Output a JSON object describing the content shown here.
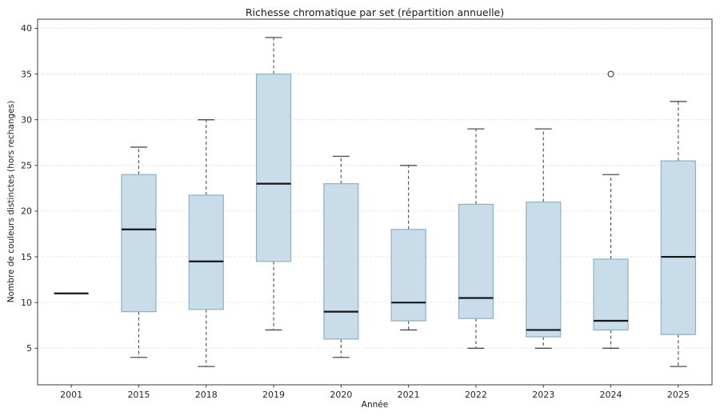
{
  "chart_data": {
    "type": "boxplot",
    "title": "Richesse chromatique par set (répartition annuelle)",
    "xlabel": "Année",
    "ylabel": "Nombre de couleurs distinctes (hors rechanges)",
    "categories": [
      "2001",
      "2015",
      "2018",
      "2019",
      "2020",
      "2021",
      "2022",
      "2023",
      "2024",
      "2025"
    ],
    "yticks": [
      5,
      10,
      15,
      20,
      25,
      30,
      35,
      40
    ],
    "ylim": [
      1,
      41
    ],
    "grid": "horizontal dashed light",
    "legend": "none",
    "boxes": [
      {
        "label": "2001",
        "min": 11,
        "q1": 11,
        "median": 11,
        "q3": 11,
        "max": 11,
        "outliers": []
      },
      {
        "label": "2015",
        "min": 4,
        "q1": 9,
        "median": 18,
        "q3": 24,
        "max": 27,
        "outliers": []
      },
      {
        "label": "2018",
        "min": 3,
        "q1": 9.25,
        "median": 14.5,
        "q3": 21.75,
        "max": 30,
        "outliers": []
      },
      {
        "label": "2019",
        "min": 7,
        "q1": 14.5,
        "median": 23,
        "q3": 35,
        "max": 39,
        "outliers": []
      },
      {
        "label": "2020",
        "min": 4,
        "q1": 6,
        "median": 9,
        "q3": 23,
        "max": 26,
        "outliers": []
      },
      {
        "label": "2021",
        "min": 7,
        "q1": 8,
        "median": 10,
        "q3": 18,
        "max": 25,
        "outliers": []
      },
      {
        "label": "2022",
        "min": 5,
        "q1": 8.25,
        "median": 10.5,
        "q3": 20.75,
        "max": 29,
        "outliers": []
      },
      {
        "label": "2023",
        "min": 5,
        "q1": 6.25,
        "median": 7,
        "q3": 21,
        "max": 29,
        "outliers": []
      },
      {
        "label": "2024",
        "min": 5,
        "q1": 7,
        "median": 8,
        "q3": 14.75,
        "max": 24,
        "outliers": [
          35
        ]
      },
      {
        "label": "2025",
        "min": 3,
        "q1": 6.5,
        "median": 15,
        "q3": 25.5,
        "max": 32,
        "outliers": []
      }
    ],
    "colors": {
      "box_fill": "#c9dcea",
      "box_edge": "#90afc4",
      "median": "#151515",
      "whisker": "#4d4d4d",
      "cap": "#4d4d4d",
      "outlier": "#3a3a3a",
      "grid": "#e2e2e2",
      "spine": "#3a3a3a",
      "text": "#262626"
    }
  }
}
